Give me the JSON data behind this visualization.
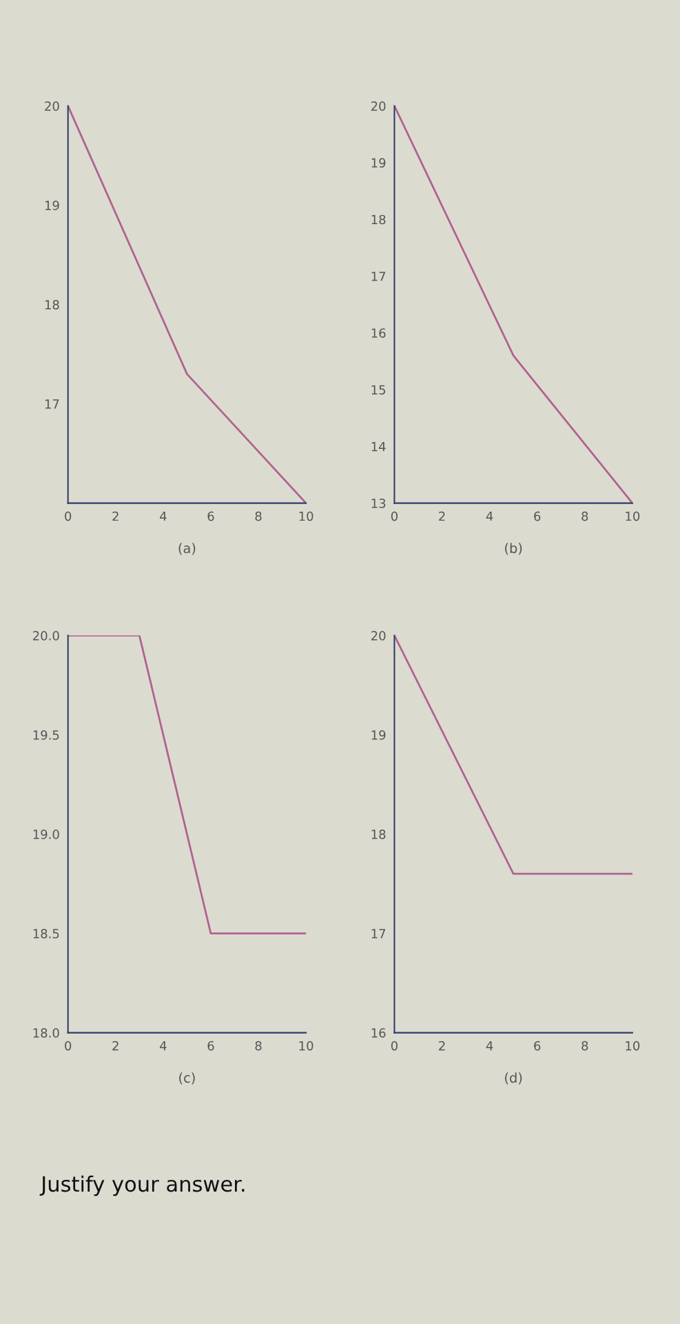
{
  "chart_data": [
    {
      "type": "line",
      "title": "(a)",
      "x": [
        0,
        5,
        10
      ],
      "values": [
        20,
        17.3,
        16
      ],
      "color": "#b0628f",
      "xlim": [
        0,
        10
      ],
      "xticks": [
        0,
        2,
        4,
        6,
        8,
        10
      ],
      "ylim": [
        16,
        20
      ],
      "yticks": [
        {
          "value": 16,
          "label": null
        },
        17,
        18,
        19,
        20
      ],
      "grid": false,
      "marker": "none",
      "line_style": "solid"
    },
    {
      "type": "line",
      "title": "(b)",
      "x": [
        0,
        5,
        10
      ],
      "values": [
        20,
        15.6,
        13
      ],
      "color": "#b0628f",
      "xlim": [
        0,
        10
      ],
      "xticks": [
        0,
        2,
        4,
        6,
        8,
        10
      ],
      "ylim": [
        13,
        20
      ],
      "yticks": [
        13,
        14,
        15,
        16,
        17,
        18,
        19,
        20
      ],
      "grid": false,
      "marker": "none",
      "line_style": "solid"
    },
    {
      "type": "line",
      "title": "(c)",
      "x": [
        0,
        3,
        6,
        10
      ],
      "values": [
        20,
        20,
        18.5,
        18.5
      ],
      "color": "#b0628f",
      "xlim": [
        0,
        10
      ],
      "xticks": [
        0,
        2,
        4,
        6,
        8,
        10
      ],
      "ylim": [
        18,
        20
      ],
      "yticks": [
        {
          "value": 18,
          "label": "18.0"
        },
        {
          "value": 18.5,
          "label": "18.5"
        },
        {
          "value": 19,
          "label": "19.0"
        },
        {
          "value": 19.5,
          "label": "19.5"
        },
        {
          "value": 20,
          "label": "20.0"
        }
      ],
      "grid": false,
      "marker": "none",
      "line_style": "solid"
    },
    {
      "type": "line",
      "title": "(d)",
      "x": [
        0,
        5,
        10
      ],
      "values": [
        20,
        17.6,
        17.6
      ],
      "color": "#b0628f",
      "xlim": [
        0,
        10
      ],
      "xticks": [
        0,
        2,
        4,
        6,
        8,
        10
      ],
      "ylim": [
        16,
        20
      ],
      "yticks": [
        16,
        17,
        18,
        19,
        20
      ],
      "grid": false,
      "marker": "none",
      "line_style": "solid",
      "annotations": [
        "Justify your answer."
      ]
    }
  ]
}
